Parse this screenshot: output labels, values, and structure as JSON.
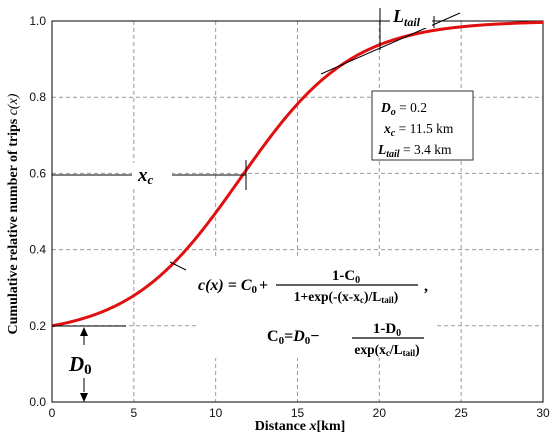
{
  "chart_data": {
    "type": "line",
    "xlabel_prefix": "Distance",
    "xlabel_var": "x",
    "xlabel_unit": "[km]",
    "ylabel_text": "Cumulative relative number of trips",
    "ylabel_var": "c(x)",
    "xlim": [
      0,
      30
    ],
    "ylim": [
      0,
      1.0
    ],
    "x_ticks": [
      0,
      5,
      10,
      15,
      20,
      25,
      30
    ],
    "y_ticks": [
      0.0,
      0.2,
      0.4,
      0.6,
      0.8,
      1.0
    ],
    "x_tick_labels": [
      "0",
      "5",
      "10",
      "15",
      "20",
      "25",
      "30"
    ],
    "y_tick_labels": [
      "0.0",
      "0.2",
      "0.4",
      "0.6",
      "0.8",
      "1.0"
    ],
    "grid": true,
    "series": [
      {
        "color": "#e01010",
        "model": "c(x) = C0 + (1-C0)/(1+exp(-(x-xc)/Ltail))",
        "params": {
          "D0": 0.2,
          "xc": 11.5,
          "Ltail": 3.4
        },
        "x": [
          0,
          1,
          2,
          3,
          4,
          5,
          6,
          7,
          8,
          9,
          10,
          11,
          12,
          13,
          14,
          15,
          16,
          17,
          18,
          19,
          20,
          21,
          22,
          23,
          24,
          25,
          26,
          27,
          28,
          29,
          30
        ],
        "y": [
          0.2,
          0.209,
          0.22,
          0.234,
          0.251,
          0.273,
          0.3,
          0.333,
          0.374,
          0.422,
          0.478,
          0.54,
          0.605,
          0.67,
          0.731,
          0.784,
          0.83,
          0.867,
          0.897,
          0.92,
          0.938,
          0.952,
          0.963,
          0.971,
          0.977,
          0.982,
          0.986,
          0.989,
          0.991,
          0.992,
          0.993
        ]
      }
    ],
    "annotations": {
      "L_tail_label": "L",
      "L_tail_sub": "tail",
      "xc_label": "x",
      "xc_sub": "c",
      "D0_label": "D",
      "D0_sub": "0"
    },
    "info_box": {
      "line1_var": "D",
      "line1_sub": "o",
      "line1_value": " = 0.2",
      "line2_var": "x",
      "line2_sub": "c",
      "line2_value": " = 11.5 km",
      "line3_var": "L",
      "line3_sub": "tail",
      "line3_value": " = 3.4 km"
    },
    "formula": {
      "lhs": "c(x) = C",
      "lhs_sub": "0",
      "plus": "+",
      "num1": "1-C",
      "num1_sub": "0",
      "den1_a": "1+exp(-(x-x",
      "den1_sub": "c",
      "den1_b": ")/L",
      "den1_sub2": "tail",
      "den1_c": ")",
      "comma": ",",
      "c0_lhs": "C",
      "c0_lhs_sub": "0",
      "c0_eq": "=",
      "c0_d": "D",
      "c0_d_sub": "0",
      "minus": "−",
      "num2": "1-D",
      "num2_sub": "0",
      "den2_a": "exp(x",
      "den2_sub": "c",
      "den2_b": "/L",
      "den2_sub2": "tail",
      "den2_c": ")"
    }
  }
}
